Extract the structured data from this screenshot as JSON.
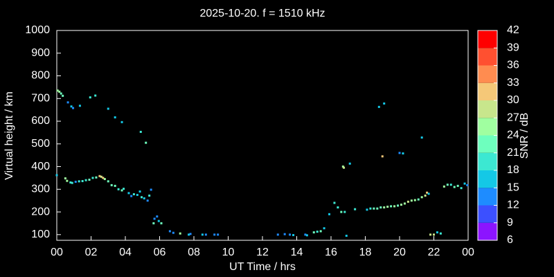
{
  "chart_data": {
    "type": "scatter",
    "title": "2025-10-20. f = 1510 kHz",
    "xlabel": "UT Time / hrs",
    "ylabel": "Virtual height / km",
    "xlim": [
      0,
      24
    ],
    "xticks": [
      {
        "value": 0,
        "label": "00"
      },
      {
        "value": 2,
        "label": "02"
      },
      {
        "value": 4,
        "label": "04"
      },
      {
        "value": 6,
        "label": "06"
      },
      {
        "value": 8,
        "label": "08"
      },
      10,
      12,
      14,
      16,
      18,
      20,
      22,
      {
        "value": 24,
        "label": "00"
      }
    ],
    "ylim": [
      75,
      1000
    ],
    "yticks": [
      100,
      200,
      300,
      400,
      500,
      600,
      700,
      800,
      900,
      1000
    ],
    "colorbar": {
      "label": "SNR / dB",
      "ticks": [
        6,
        9,
        12,
        15,
        18,
        21,
        24,
        27,
        30,
        33,
        36,
        39,
        42
      ],
      "colors": [
        "#8c14ff",
        "#3c50ff",
        "#1e8cff",
        "#14c8e6",
        "#3ce8d2",
        "#6effbe",
        "#a0ffa0",
        "#c8e68c",
        "#f5c878",
        "#ff8c50",
        "#ff5030",
        "#ff0000"
      ]
    },
    "x": [
      0.05,
      0.15,
      0.25,
      0.35,
      0.65,
      0.85,
      0.95,
      1.35,
      1.95,
      2.25,
      3.0,
      3.4,
      3.8,
      4.9,
      5.2,
      0.0,
      0.5,
      0.6,
      0.8,
      0.9,
      1.1,
      1.3,
      1.5,
      1.7,
      1.9,
      2.1,
      2.3,
      2.5,
      2.6,
      2.7,
      2.8,
      3.0,
      3.2,
      3.4,
      3.6,
      3.8,
      3.9,
      4.2,
      4.35,
      4.5,
      4.7,
      4.85,
      4.95,
      5.1,
      5.3,
      5.4,
      5.5,
      5.65,
      5.7,
      5.85,
      5.95,
      6.1,
      6.6,
      6.8,
      7.2,
      7.7,
      7.8,
      8.5,
      8.7,
      9.2,
      9.4,
      12.9,
      13.3,
      13.6,
      13.8,
      14.5,
      14.6,
      15.0,
      15.2,
      15.4,
      15.6,
      15.9,
      16.2,
      16.4,
      16.6,
      16.8,
      16.9,
      17.4,
      18.1,
      18.3,
      18.5,
      18.7,
      18.9,
      19.1,
      19.3,
      19.5,
      19.7,
      19.9,
      20.1,
      20.3,
      20.5,
      20.7,
      20.9,
      21.1,
      21.3,
      21.5,
      21.6,
      21.7,
      21.8,
      22.0,
      22.2,
      22.4,
      22.6,
      22.8,
      23.0,
      23.2,
      23.4,
      23.6,
      23.8,
      23.95,
      16.7,
      16.75,
      17.1,
      18.8,
      19.1,
      19.0,
      20.0,
      20.2,
      21.3
    ],
    "values": [
      735,
      730,
      722,
      712,
      683,
      665,
      658,
      668,
      705,
      713,
      655,
      617,
      596,
      553,
      505,
      362,
      348,
      337,
      330,
      328,
      333,
      335,
      336,
      340,
      342,
      350,
      352,
      358,
      355,
      350,
      345,
      335,
      318,
      315,
      300,
      295,
      302,
      283,
      270,
      278,
      275,
      290,
      265,
      260,
      250,
      272,
      298,
      150,
      170,
      180,
      160,
      150,
      115,
      108,
      105,
      100,
      103,
      100,
      100,
      100,
      100,
      100,
      102,
      100,
      98,
      100,
      97,
      110,
      113,
      115,
      128,
      190,
      240,
      220,
      200,
      200,
      95,
      212,
      210,
      215,
      215,
      215,
      220,
      220,
      223,
      225,
      225,
      228,
      232,
      237,
      245,
      250,
      252,
      255,
      265,
      272,
      285,
      280,
      100,
      100,
      110,
      105,
      312,
      320,
      320,
      310,
      315,
      305,
      325,
      318,
      400,
      395,
      413,
      663,
      678,
      445,
      460,
      458,
      528
    ],
    "snr": [
      24,
      24,
      21,
      21,
      12,
      15,
      12,
      15,
      18,
      18,
      15,
      15,
      15,
      18,
      21,
      15,
      24,
      24,
      18,
      18,
      12,
      18,
      18,
      18,
      21,
      18,
      21,
      30,
      27,
      30,
      24,
      21,
      21,
      21,
      18,
      21,
      18,
      15,
      12,
      18,
      15,
      15,
      18,
      15,
      12,
      18,
      12,
      21,
      12,
      12,
      15,
      21,
      12,
      12,
      24,
      15,
      12,
      15,
      12,
      12,
      12,
      12,
      12,
      12,
      15,
      12,
      15,
      21,
      18,
      21,
      15,
      15,
      18,
      18,
      21,
      18,
      15,
      18,
      15,
      18,
      21,
      21,
      21,
      24,
      24,
      21,
      24,
      21,
      24,
      24,
      27,
      24,
      24,
      21,
      24,
      27,
      30,
      15,
      27,
      27,
      15,
      18,
      24,
      21,
      18,
      21,
      21,
      18,
      15,
      12,
      24,
      27,
      15,
      15,
      15,
      30,
      12,
      15,
      15
    ]
  }
}
